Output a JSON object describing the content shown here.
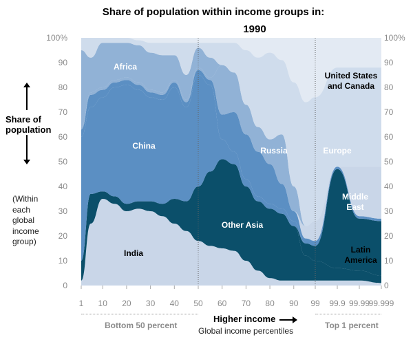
{
  "title": "Share of population within income groups in:",
  "subtitle": "1990",
  "side": {
    "label_line1": "Share of",
    "label_line2": "population",
    "note_line1": "(Within",
    "note_line2": "each",
    "note_line3": "global",
    "note_line4": "income",
    "note_line5": "group)"
  },
  "footer": {
    "left": "Bottom 50 percent",
    "middle": "Higher income",
    "sub": "Global income percentiles",
    "right": "Top 1 percent"
  },
  "colors": {
    "India": "#c9d6e8",
    "Other Asia": "#0b4f6a",
    "Middle East": "#0b4f6a",
    "China": "#5b8fc3",
    "Russia": "#5b8fc3",
    "Latin America": "#c9d6e8",
    "Europe": "#91b2d6",
    "Africa": "#91b2d6",
    "United States and Canada": "#cfdcec",
    "top_band": "#e3eaf3"
  },
  "chart_data": {
    "type": "area",
    "stacked": true,
    "title": "Share of population within income groups in:",
    "subtitle": "1990",
    "xlabel": "Global income percentiles",
    "ylabel": "Share of population",
    "ylim": [
      0,
      100
    ],
    "y_ticks": [
      "0",
      "10",
      "20",
      "30",
      "40",
      "50",
      "60",
      "70",
      "80",
      "90",
      "100%"
    ],
    "x_ticks": [
      "1",
      "10",
      "20",
      "30",
      "40",
      "50",
      "60",
      "70",
      "80",
      "90",
      "99",
      "99.9",
      "99.99",
      "99.999"
    ],
    "x": [
      "1",
      "5",
      "10",
      "15",
      "20",
      "25",
      "30",
      "35",
      "40",
      "45",
      "50",
      "55",
      "60",
      "65",
      "70",
      "75",
      "80",
      "85",
      "90",
      "95",
      "99",
      "99.9",
      "99.99",
      "99.999"
    ],
    "series": [
      {
        "name": "India",
        "values": [
          2,
          25,
          35,
          33,
          30,
          31,
          30,
          28,
          25,
          22,
          18,
          16,
          15,
          14,
          10,
          6,
          3,
          2,
          2,
          2,
          2,
          2,
          2,
          1
        ]
      },
      {
        "name": "Other Asia",
        "values": [
          8,
          12,
          3,
          3,
          3,
          3,
          4,
          5,
          10,
          12,
          22,
          30,
          36,
          35,
          30,
          28,
          28,
          27,
          22,
          10,
          8,
          5,
          4,
          3
        ]
      },
      {
        "name": "Middle East",
        "values": [
          0,
          0,
          0,
          0,
          0,
          0,
          0,
          0,
          0,
          0,
          0,
          0,
          0,
          0,
          0,
          0,
          0,
          0,
          0,
          5,
          6,
          40,
          21,
          22
        ]
      },
      {
        "name": "China",
        "values": [
          50,
          35,
          38,
          44,
          48,
          45,
          42,
          42,
          45,
          38,
          45,
          35,
          8,
          5,
          3,
          2,
          2,
          2,
          2,
          0,
          0,
          0,
          0,
          0
        ]
      },
      {
        "name": "Russia",
        "values": [
          3,
          5,
          3,
          2,
          2,
          2,
          2,
          2,
          2,
          2,
          2,
          2,
          10,
          16,
          18,
          18,
          16,
          10,
          4,
          2,
          2,
          1,
          1,
          1
        ]
      },
      {
        "name": "Latin America",
        "values": [
          0,
          0,
          0,
          0,
          0,
          0,
          0,
          0,
          0,
          0,
          0,
          0,
          0,
          0,
          0,
          0,
          0,
          0,
          0,
          5,
          8,
          0,
          20,
          21
        ]
      },
      {
        "name": "Europe",
        "values": [
          1,
          1,
          1,
          1,
          1,
          1,
          1,
          1,
          1,
          1,
          1,
          1,
          20,
          16,
          12,
          10,
          10,
          20,
          10,
          0,
          0,
          0,
          0,
          0
        ]
      },
      {
        "name": "Africa",
        "values": [
          31,
          14,
          18,
          15,
          14,
          15,
          15,
          15,
          10,
          10,
          8,
          8,
          0,
          0,
          0,
          0,
          0,
          0,
          0,
          0,
          0,
          0,
          0,
          0
        ]
      },
      {
        "name": "United States and Canada",
        "values": [
          5,
          8,
          2,
          2,
          2,
          2,
          4,
          5,
          5,
          13,
          2,
          6,
          9,
          12,
          22,
          28,
          35,
          30,
          42,
          50,
          50,
          40,
          40,
          40
        ]
      }
    ],
    "annotations": [
      "India",
      "Other Asia",
      "Middle East",
      "China",
      "Russia",
      "Latin America",
      "Europe",
      "Africa",
      "United States and Canada"
    ],
    "reference_lines_at": [
      "50",
      "99"
    ],
    "grid": false
  }
}
